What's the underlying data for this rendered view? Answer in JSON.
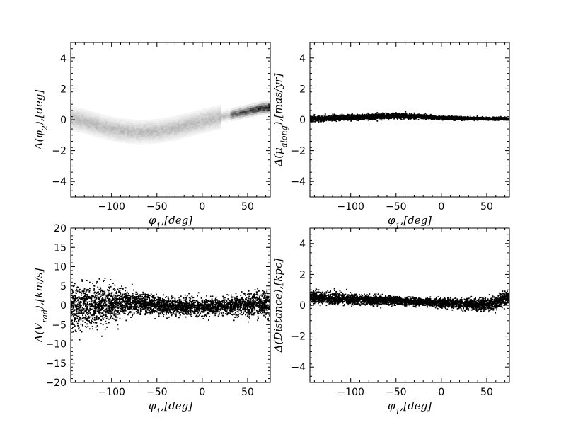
{
  "chart_data": [
    {
      "type": "heatmap",
      "xlabel": "φ_1,[deg]",
      "ylabel": "Δ(φ_2),[deg]",
      "xlim": [
        -145,
        75
      ],
      "ylim": [
        -5,
        5
      ],
      "xticks": [
        -100,
        -50,
        0,
        50
      ],
      "yticks": [
        -4,
        -2,
        0,
        2,
        4
      ],
      "color": "#000000",
      "trend": {
        "x": [
          -145,
          -130,
          -110,
          -90,
          -70,
          -50,
          -30,
          -10,
          10,
          30,
          50,
          65,
          75
        ],
        "y": [
          0.1,
          -0.1,
          -0.45,
          -0.7,
          -0.8,
          -0.75,
          -0.55,
          -0.25,
          0.05,
          0.3,
          0.55,
          0.75,
          0.8
        ]
      }
    },
    {
      "type": "scatter",
      "xlabel": "φ_1,[deg]",
      "ylabel": "Δ(μ_along),[mas/yr]",
      "xlim": [
        -145,
        75
      ],
      "ylim": [
        -5,
        5
      ],
      "xticks": [
        -100,
        -50,
        0,
        50
      ],
      "yticks": [
        -4,
        -2,
        0,
        2,
        4
      ],
      "color": "#000000",
      "trend": {
        "x": [
          -145,
          -100,
          -60,
          -40,
          -20,
          0,
          30,
          75
        ],
        "y": [
          0.05,
          0.15,
          0.25,
          0.25,
          0.2,
          0.12,
          0.08,
          0.05
        ]
      },
      "spread": [
        0.15,
        0.15,
        0.15,
        0.15,
        0.12,
        0.1,
        0.08,
        0.08
      ]
    },
    {
      "type": "scatter",
      "xlabel": "φ_1,[deg]",
      "ylabel": "Δ(V_rad),[km/s]",
      "xlim": [
        -145,
        75
      ],
      "ylim": [
        -20,
        20
      ],
      "xticks": [
        -100,
        -50,
        0,
        50
      ],
      "yticks": [
        -20,
        -15,
        -10,
        -5,
        0,
        5,
        10,
        15,
        20
      ],
      "color": "#000000",
      "trend": {
        "x": [
          -145,
          -120,
          -100,
          -80,
          -60,
          -40,
          -20,
          0,
          20,
          40,
          60,
          75
        ],
        "y": [
          -0.5,
          0,
          0.5,
          0.5,
          0.2,
          -0.3,
          -0.5,
          -0.5,
          -0.3,
          0,
          0.2,
          0.3
        ]
      },
      "spread": [
        5,
        5.5,
        4,
        2.8,
        2.2,
        2,
        1.8,
        1.8,
        2,
        2.4,
        2.8,
        3
      ]
    },
    {
      "type": "scatter",
      "xlabel": "φ_1,[deg]",
      "ylabel": "Δ(Distance),[kpc]",
      "xlim": [
        -145,
        75
      ],
      "ylim": [
        -5,
        5
      ],
      "xticks": [
        -100,
        -50,
        0,
        50
      ],
      "yticks": [
        -4,
        -2,
        0,
        2,
        4
      ],
      "color": "#000000",
      "trend": {
        "x": [
          -145,
          -120,
          -100,
          -80,
          -60,
          -40,
          -20,
          0,
          20,
          40,
          60,
          70,
          75
        ],
        "y": [
          0.5,
          0.45,
          0.4,
          0.35,
          0.3,
          0.25,
          0.2,
          0.15,
          0.1,
          0.05,
          0.15,
          0.4,
          0.6
        ]
      },
      "spread": [
        0.35,
        0.35,
        0.3,
        0.28,
        0.25,
        0.22,
        0.22,
        0.25,
        0.28,
        0.35,
        0.4,
        0.4,
        0.35
      ]
    }
  ]
}
